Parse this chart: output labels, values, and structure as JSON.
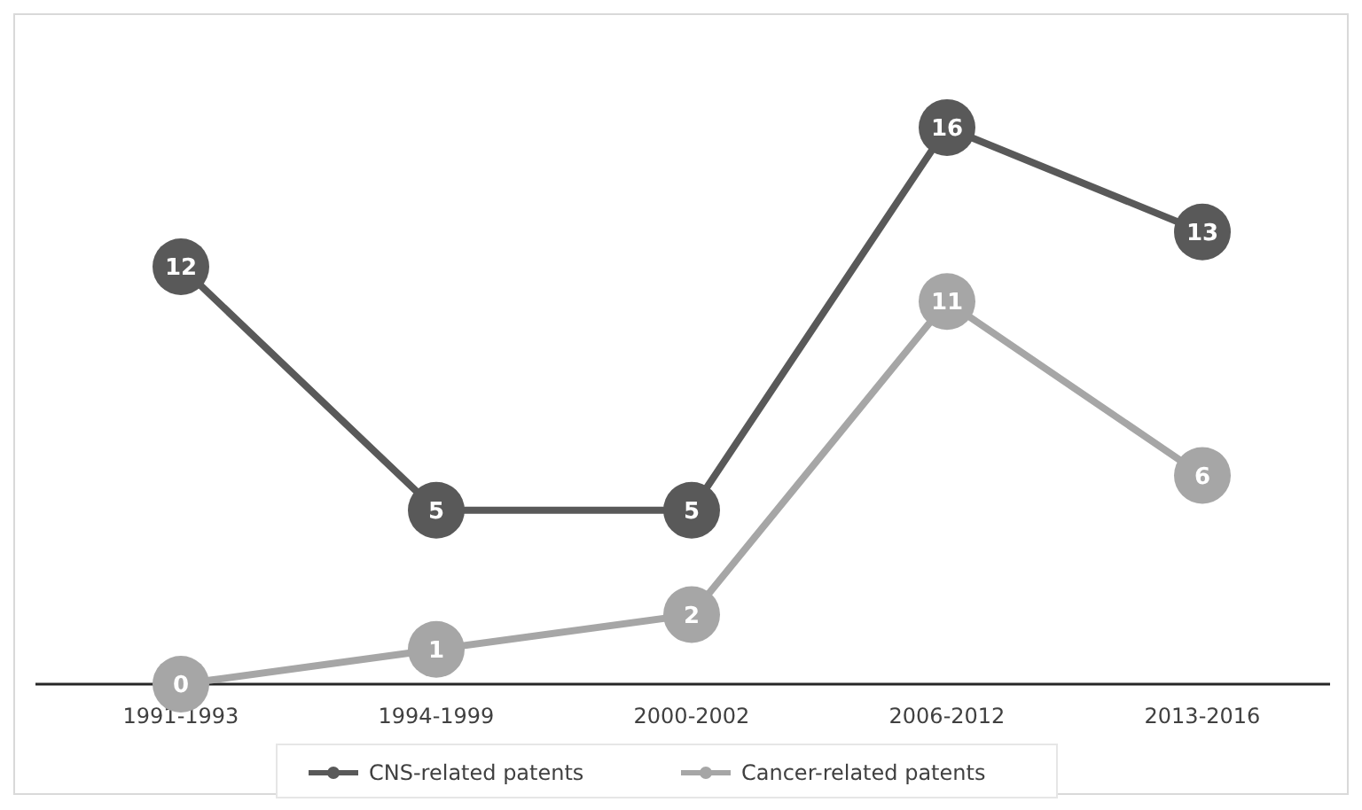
{
  "chart_data": {
    "type": "line",
    "categories": [
      "1991-1993",
      "1994-1999",
      "2000-2002",
      "2006-2012",
      "2013-2016"
    ],
    "series": [
      {
        "name": "CNS-related patents",
        "color": "#595959",
        "values": [
          12,
          5,
          5,
          16,
          13
        ]
      },
      {
        "name": "Cancer-related patents",
        "color": "#a6a6a6",
        "values": [
          0,
          1,
          2,
          11,
          6
        ]
      }
    ],
    "data_labels": true,
    "marker": "circle",
    "legend": "bottom"
  }
}
